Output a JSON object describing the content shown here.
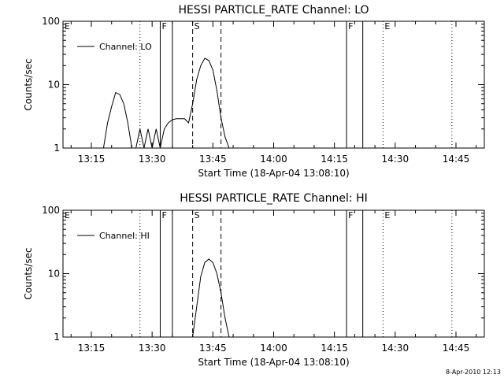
{
  "chart_data": [
    {
      "type": "line",
      "title": "HESSI PARTICLE_RATE Channel: LO",
      "xlabel": "Start Time (18-Apr-04 13:08:10)",
      "ylabel": "Counts/sec",
      "xlim": [
        "13:08",
        "14:52"
      ],
      "ylim": [
        1,
        100
      ],
      "yscale": "log",
      "x_ticks": [
        "13:15",
        "13:30",
        "13:45",
        "14:00",
        "14:15",
        "14:30",
        "14:45"
      ],
      "y_ticks": [
        "1",
        "10",
        "100"
      ],
      "legend": {
        "entries": [
          "Channel: LO"
        ],
        "placement": "top-left"
      },
      "grid": false,
      "annotations": [
        {
          "label": "E",
          "time": "13:08",
          "style": "none"
        },
        {
          "label": "",
          "time": "13:27",
          "style": "dotted"
        },
        {
          "label": "F",
          "time": "13:32",
          "style": "solid"
        },
        {
          "label": "",
          "time": "13:35",
          "style": "solid"
        },
        {
          "label": "S",
          "time": "13:40",
          "style": "dashed"
        },
        {
          "label": "",
          "time": "13:47",
          "style": "dashed"
        },
        {
          "label": "F",
          "time": "14:18",
          "style": "solid"
        },
        {
          "label": "",
          "time": "14:22",
          "style": "solid"
        },
        {
          "label": "E",
          "time": "14:27",
          "style": "dotted"
        },
        {
          "label": "",
          "time": "14:44",
          "style": "dotted"
        }
      ],
      "series": [
        {
          "name": "Channel: LO",
          "points": [
            [
              "13:18",
              1
            ],
            [
              "13:19",
              2.5
            ],
            [
              "13:20",
              4.5
            ],
            [
              "13:21",
              7.5
            ],
            [
              "13:22",
              7
            ],
            [
              "13:23",
              5
            ],
            [
              "13:24",
              2.5
            ],
            [
              "13:25",
              1
            ],
            [
              "13:26",
              1
            ],
            [
              "13:27",
              2
            ],
            [
              "13:28",
              1
            ],
            [
              "13:29",
              2
            ],
            [
              "13:30",
              1
            ],
            [
              "13:31",
              2
            ],
            [
              "13:32",
              1
            ],
            [
              "13:33",
              2
            ],
            [
              "13:34",
              2.5
            ],
            [
              "13:35",
              2.8
            ],
            [
              "13:36",
              2.9
            ],
            [
              "13:38",
              2.9
            ],
            [
              "13:39",
              2.5
            ],
            [
              "13:40",
              5
            ],
            [
              "13:41",
              12
            ],
            [
              "13:42",
              20
            ],
            [
              "13:43",
              26
            ],
            [
              "13:44",
              24
            ],
            [
              "13:45",
              17
            ],
            [
              "13:46",
              8
            ],
            [
              "13:47",
              3
            ],
            [
              "13:48",
              1.5
            ],
            [
              "13:49",
              1
            ]
          ]
        }
      ]
    },
    {
      "type": "line",
      "title": "HESSI PARTICLE_RATE Channel: HI",
      "xlabel": "Start Time (18-Apr-04 13:08:10)",
      "ylabel": "Counts/sec",
      "xlim": [
        "13:08",
        "14:52"
      ],
      "ylim": [
        1,
        100
      ],
      "yscale": "log",
      "x_ticks": [
        "13:15",
        "13:30",
        "13:45",
        "14:00",
        "14:15",
        "14:30",
        "14:45"
      ],
      "y_ticks": [
        "1",
        "10",
        "100"
      ],
      "legend": {
        "entries": [
          "Channel: HI"
        ],
        "placement": "top-left"
      },
      "grid": false,
      "annotations": [
        {
          "label": "E",
          "time": "13:08",
          "style": "none"
        },
        {
          "label": "",
          "time": "13:27",
          "style": "dotted"
        },
        {
          "label": "F",
          "time": "13:32",
          "style": "solid"
        },
        {
          "label": "",
          "time": "13:35",
          "style": "solid"
        },
        {
          "label": "S",
          "time": "13:40",
          "style": "dashed"
        },
        {
          "label": "",
          "time": "13:47",
          "style": "dashed"
        },
        {
          "label": "F",
          "time": "14:18",
          "style": "solid"
        },
        {
          "label": "",
          "time": "14:22",
          "style": "solid"
        },
        {
          "label": "E",
          "time": "14:27",
          "style": "dotted"
        },
        {
          "label": "",
          "time": "14:44",
          "style": "dotted"
        }
      ],
      "series": [
        {
          "name": "Channel: HI",
          "points": [
            [
              "13:40",
              1
            ],
            [
              "13:41",
              3
            ],
            [
              "13:42",
              9
            ],
            [
              "13:43",
              15
            ],
            [
              "13:44",
              17
            ],
            [
              "13:45",
              15
            ],
            [
              "13:46",
              10
            ],
            [
              "13:47",
              5
            ],
            [
              "13:48",
              2
            ],
            [
              "13:49",
              1
            ]
          ]
        }
      ]
    }
  ],
  "footer": {
    "stamp": "8-Apr-2010 12:13"
  }
}
